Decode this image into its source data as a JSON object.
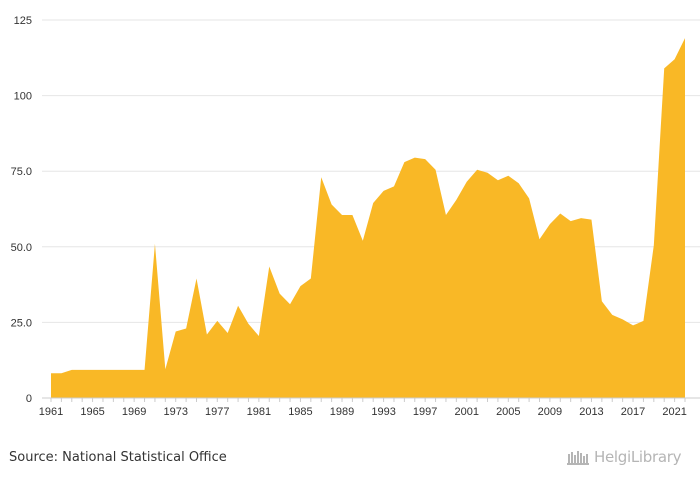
{
  "chart_data": {
    "type": "area",
    "x": [
      1961,
      1962,
      1963,
      1964,
      1965,
      1966,
      1967,
      1968,
      1969,
      1970,
      1971,
      1972,
      1973,
      1974,
      1975,
      1976,
      1977,
      1978,
      1979,
      1980,
      1981,
      1982,
      1983,
      1984,
      1985,
      1986,
      1987,
      1988,
      1989,
      1990,
      1991,
      1992,
      1993,
      1994,
      1995,
      1996,
      1997,
      1998,
      1999,
      2000,
      2001,
      2002,
      2003,
      2004,
      2005,
      2006,
      2007,
      2008,
      2009,
      2010,
      2011,
      2012,
      2013,
      2014,
      2015,
      2016,
      2017,
      2018,
      2019,
      2020,
      2021,
      2022
    ],
    "values": [
      8.2,
      8.2,
      9.3,
      9.3,
      9.3,
      9.3,
      9.3,
      9.3,
      9.3,
      9.3,
      51,
      9.5,
      22,
      23,
      39.5,
      21,
      25.5,
      21.5,
      30.5,
      24.5,
      20.5,
      43.5,
      34.5,
      31,
      37,
      39.5,
      73,
      64,
      60.5,
      60.5,
      52,
      64.5,
      68.5,
      70,
      78,
      79.5,
      79,
      75.5,
      60.5,
      65.5,
      71.5,
      75.5,
      74.5,
      72,
      73.5,
      71,
      66,
      52.5,
      57.5,
      61,
      58.5,
      59.5,
      59,
      32,
      27.5,
      26,
      24,
      25.5,
      50.5,
      109,
      112,
      119
    ],
    "x_tick_labels": [
      "1961",
      "1965",
      "1969",
      "1973",
      "1977",
      "1981",
      "1985",
      "1989",
      "1993",
      "1997",
      "2001",
      "2005",
      "2009",
      "2013",
      "2017",
      "2021"
    ],
    "y_tick_labels": [
      "0",
      "25.0",
      "50.0",
      "75.0",
      "100",
      "125"
    ],
    "ylim": [
      0,
      125
    ],
    "grid": "horizontal",
    "color": "#f9b826",
    "title": "",
    "xlabel": "",
    "ylabel": ""
  },
  "footer": {
    "source": "Source: National Statistical Office",
    "logo_text": "HelgiLibrary"
  }
}
